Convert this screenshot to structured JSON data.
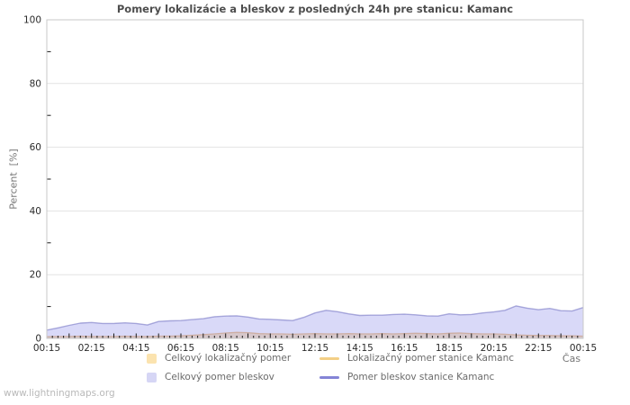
{
  "watermark": "www.lightningmaps.org",
  "legend": {
    "position": "bottom",
    "items": [
      {
        "label": "Celkový lokalizačný pomer",
        "swatch": "fill",
        "color": "#fbe3af"
      },
      {
        "label": "Lokalizačný pomer stanice Kamanc",
        "swatch": "line",
        "color": "#f3cf86"
      },
      {
        "label": "Celkový pomer bleskov",
        "swatch": "fill",
        "color": "#d6d6f5"
      },
      {
        "label": "Pomer bleskov stanice Kamanc",
        "swatch": "line",
        "color": "#8484d6"
      }
    ]
  },
  "chart_data": {
    "type": "area",
    "title": "Pomery lokalizácie a bleskov z posledných 24h pre stanicu: Kamanc",
    "xlabel": "Čas",
    "ylabel": "Percent  [%]",
    "ylim": [
      0,
      100
    ],
    "grid": true,
    "x_range_hours": [
      0.25,
      24.25
    ],
    "interval_minutes": 30,
    "x_tick_labels": [
      "00:15",
      "02:15",
      "04:15",
      "06:15",
      "08:15",
      "10:15",
      "12:15",
      "14:15",
      "16:15",
      "18:15",
      "20:15",
      "22:15",
      "00:15"
    ],
    "x_label_every_min": 120,
    "x_major_tick_every_min": 60,
    "x_minor_tick_every_min": 15,
    "y_ticks": [
      0,
      20,
      40,
      60,
      80,
      100
    ],
    "y_minor_ticks": [
      10,
      30,
      50,
      70,
      90
    ],
    "colors": {
      "plot_border": "#c9c9c9",
      "grid": "#e3e3e3",
      "tick": "#1a1a1a",
      "tick_label": "#2b2b2b",
      "title": "#4d4d4d",
      "axis_title": "#757575"
    },
    "series": [
      {
        "name": "Celkový lokalizačný pomer",
        "id": "total-localization-ratio",
        "type": "area",
        "fill": "rgba(246,202,118,0.55)",
        "stroke": "none",
        "values": [
          0.5,
          0.6,
          0.6,
          0.7,
          0.6,
          0.6,
          0.6,
          0.7,
          0.6,
          0.6,
          0.7,
          0.7,
          0.8,
          1.0,
          1.2,
          1.4,
          1.7,
          1.9,
          1.8,
          1.5,
          1.4,
          1.4,
          1.3,
          1.4,
          1.5,
          1.4,
          1.4,
          1.5,
          1.4,
          1.4,
          1.5,
          1.4,
          1.5,
          1.6,
          1.5,
          1.4,
          1.6,
          1.7,
          1.5,
          1.4,
          1.4,
          1.3,
          1.1,
          1.0,
          0.9,
          0.9,
          0.8,
          0.8,
          0.7
        ]
      },
      {
        "name": "Lokalizačný pomer stanice Kamanc",
        "id": "station-localization-ratio",
        "type": "line",
        "fill": "none",
        "stroke": "rgba(233,178,104,0.9)",
        "stroke_width": 1.3,
        "values": [
          0.5,
          0.6,
          0.6,
          0.7,
          0.6,
          0.6,
          0.6,
          0.7,
          0.6,
          0.6,
          0.7,
          0.7,
          0.8,
          1.0,
          1.2,
          1.4,
          1.7,
          1.9,
          1.8,
          1.5,
          1.4,
          1.4,
          1.3,
          1.4,
          1.5,
          1.4,
          1.4,
          1.5,
          1.4,
          1.4,
          1.5,
          1.4,
          1.5,
          1.6,
          1.5,
          1.4,
          1.6,
          1.7,
          1.5,
          1.4,
          1.4,
          1.3,
          1.1,
          1.0,
          0.9,
          0.9,
          0.8,
          0.8,
          0.7
        ]
      },
      {
        "name": "Celkový pomer bleskov",
        "id": "total-lightning-ratio",
        "type": "area",
        "fill": "rgba(160,160,238,0.40)",
        "stroke": "none",
        "values": [
          2.6,
          3.3,
          4.1,
          4.8,
          5.0,
          4.7,
          4.7,
          4.9,
          4.7,
          4.2,
          5.3,
          5.5,
          5.6,
          5.9,
          6.2,
          6.8,
          7.0,
          7.1,
          6.7,
          6.1,
          6.0,
          5.8,
          5.6,
          6.6,
          8.0,
          8.8,
          8.4,
          7.7,
          7.2,
          7.3,
          7.3,
          7.5,
          7.6,
          7.4,
          7.1,
          7.0,
          7.7,
          7.4,
          7.5,
          8.0,
          8.3,
          8.8,
          10.2,
          9.5,
          9.0,
          9.4,
          8.7,
          8.6,
          9.7
        ]
      },
      {
        "name": "Pomer bleskov stanice Kamanc",
        "id": "station-lightning-ratio",
        "type": "line",
        "fill": "none",
        "stroke": "rgba(108,108,192,0.55)",
        "stroke_width": 1.4,
        "values": [
          2.6,
          3.3,
          4.1,
          4.8,
          5.0,
          4.7,
          4.7,
          4.9,
          4.7,
          4.2,
          5.3,
          5.5,
          5.6,
          5.9,
          6.2,
          6.8,
          7.0,
          7.1,
          6.7,
          6.1,
          6.0,
          5.8,
          5.6,
          6.6,
          8.0,
          8.8,
          8.4,
          7.7,
          7.2,
          7.3,
          7.3,
          7.5,
          7.6,
          7.4,
          7.1,
          7.0,
          7.7,
          7.4,
          7.5,
          8.0,
          8.3,
          8.8,
          10.2,
          9.5,
          9.0,
          9.4,
          8.7,
          8.6,
          9.7
        ]
      }
    ]
  }
}
